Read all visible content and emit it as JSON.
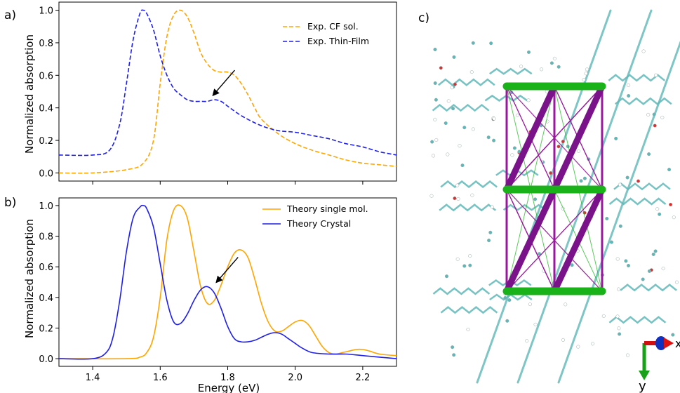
{
  "panels": {
    "a": "a)",
    "b": "b)",
    "c": "c)"
  },
  "xlabel": "Energy (eV)",
  "ylabel": "Normalized absorption",
  "axes_labels": {
    "x": "x",
    "y": "y"
  },
  "colors": {
    "orange": "#FFA500",
    "blue": "#1f1fe6",
    "purple": "#9a179e",
    "green": "#19b319",
    "cyan": "#5fb7b7"
  },
  "chart_data": [
    {
      "type": "line",
      "panel": "a)",
      "xlim": [
        1.3,
        2.3
      ],
      "ylim": [
        -0.05,
        1.05
      ],
      "xticks": [
        1.4,
        1.6,
        1.8,
        2.0,
        2.2
      ],
      "yticks": [
        0.0,
        0.2,
        0.4,
        0.6,
        0.8,
        1.0
      ],
      "ytick_labels": [
        "0.0",
        "0.2",
        "0.4",
        "0.6",
        "0.8",
        "1.0"
      ],
      "ylabel": "Normalized absorption",
      "legend_position": "upper right",
      "series": [
        {
          "name": "Exp. CF sol.",
          "style": "dashed",
          "color": "#FFA500",
          "x": [
            1.3,
            1.4,
            1.5,
            1.55,
            1.58,
            1.6,
            1.62,
            1.64,
            1.66,
            1.68,
            1.7,
            1.72,
            1.74,
            1.76,
            1.78,
            1.8,
            1.82,
            1.84,
            1.86,
            1.88,
            1.9,
            1.95,
            2.0,
            2.05,
            2.1,
            2.15,
            2.2,
            2.25,
            2.3
          ],
          "y": [
            0.0,
            0.0,
            0.02,
            0.06,
            0.2,
            0.55,
            0.84,
            0.97,
            1.0,
            0.96,
            0.86,
            0.74,
            0.67,
            0.63,
            0.62,
            0.62,
            0.6,
            0.55,
            0.48,
            0.4,
            0.33,
            0.24,
            0.18,
            0.14,
            0.11,
            0.08,
            0.06,
            0.05,
            0.04
          ]
        },
        {
          "name": "Exp. Thin-Film",
          "style": "dashed",
          "color": "#1f1fe6",
          "x": [
            1.3,
            1.4,
            1.45,
            1.48,
            1.5,
            1.52,
            1.54,
            1.55,
            1.56,
            1.58,
            1.6,
            1.62,
            1.64,
            1.66,
            1.68,
            1.7,
            1.72,
            1.74,
            1.76,
            1.78,
            1.8,
            1.82,
            1.85,
            1.9,
            1.95,
            2.0,
            2.05,
            2.1,
            2.15,
            2.2,
            2.25,
            2.3
          ],
          "y": [
            0.11,
            0.11,
            0.14,
            0.3,
            0.55,
            0.82,
            0.98,
            1.0,
            0.98,
            0.88,
            0.72,
            0.6,
            0.52,
            0.48,
            0.45,
            0.44,
            0.44,
            0.44,
            0.45,
            0.44,
            0.41,
            0.38,
            0.34,
            0.29,
            0.26,
            0.25,
            0.23,
            0.21,
            0.18,
            0.16,
            0.13,
            0.11
          ]
        }
      ],
      "annotation": {
        "type": "arrow",
        "points_to": [
          1.75,
          0.45
        ]
      }
    },
    {
      "type": "line",
      "panel": "b)",
      "xlim": [
        1.3,
        2.3
      ],
      "ylim": [
        -0.05,
        1.05
      ],
      "xticks": [
        1.4,
        1.6,
        1.8,
        2.0,
        2.2
      ],
      "xtick_labels": [
        "1.4",
        "1.6",
        "1.8",
        "2.0",
        "2.2"
      ],
      "yticks": [
        0.0,
        0.2,
        0.4,
        0.6,
        0.8,
        1.0
      ],
      "ytick_labels": [
        "0.0",
        "0.2",
        "0.4",
        "0.6",
        "0.8",
        "1.0"
      ],
      "xlabel": "Energy (eV)",
      "ylabel": "Normalized absorption",
      "legend_position": "upper right",
      "series": [
        {
          "name": "Theory single mol.",
          "style": "solid",
          "color": "#FFA500",
          "x": [
            1.3,
            1.5,
            1.54,
            1.56,
            1.58,
            1.6,
            1.62,
            1.64,
            1.66,
            1.68,
            1.7,
            1.72,
            1.74,
            1.76,
            1.78,
            1.8,
            1.82,
            1.84,
            1.86,
            1.88,
            1.9,
            1.92,
            1.94,
            1.96,
            1.98,
            2.0,
            2.02,
            2.04,
            2.06,
            2.08,
            2.1,
            2.12,
            2.14,
            2.16,
            2.18,
            2.2,
            2.22,
            2.25,
            2.3
          ],
          "y": [
            0.0,
            0.0,
            0.01,
            0.04,
            0.14,
            0.4,
            0.78,
            0.97,
            1.0,
            0.92,
            0.7,
            0.47,
            0.36,
            0.38,
            0.48,
            0.6,
            0.69,
            0.71,
            0.66,
            0.52,
            0.36,
            0.24,
            0.18,
            0.18,
            0.21,
            0.24,
            0.25,
            0.22,
            0.15,
            0.08,
            0.04,
            0.03,
            0.04,
            0.05,
            0.06,
            0.06,
            0.05,
            0.03,
            0.02
          ]
        },
        {
          "name": "Theory Crystal",
          "style": "solid",
          "color": "#1f1fe6",
          "x": [
            1.3,
            1.4,
            1.44,
            1.46,
            1.48,
            1.5,
            1.52,
            1.54,
            1.55,
            1.56,
            1.58,
            1.6,
            1.62,
            1.64,
            1.66,
            1.68,
            1.7,
            1.72,
            1.74,
            1.76,
            1.78,
            1.8,
            1.82,
            1.84,
            1.86,
            1.88,
            1.9,
            1.92,
            1.94,
            1.96,
            1.98,
            2.0,
            2.02,
            2.05,
            2.1,
            2.15,
            2.2,
            2.25,
            2.3
          ],
          "y": [
            0.0,
            0.0,
            0.04,
            0.14,
            0.38,
            0.7,
            0.92,
            0.99,
            1.0,
            0.98,
            0.86,
            0.62,
            0.38,
            0.24,
            0.23,
            0.29,
            0.38,
            0.45,
            0.47,
            0.43,
            0.33,
            0.21,
            0.13,
            0.11,
            0.11,
            0.12,
            0.14,
            0.16,
            0.17,
            0.16,
            0.13,
            0.1,
            0.07,
            0.04,
            0.03,
            0.03,
            0.02,
            0.01,
            0.0
          ]
        }
      ],
      "annotation": {
        "type": "arrow",
        "points_to": [
          1.76,
          0.47
        ]
      }
    }
  ]
}
